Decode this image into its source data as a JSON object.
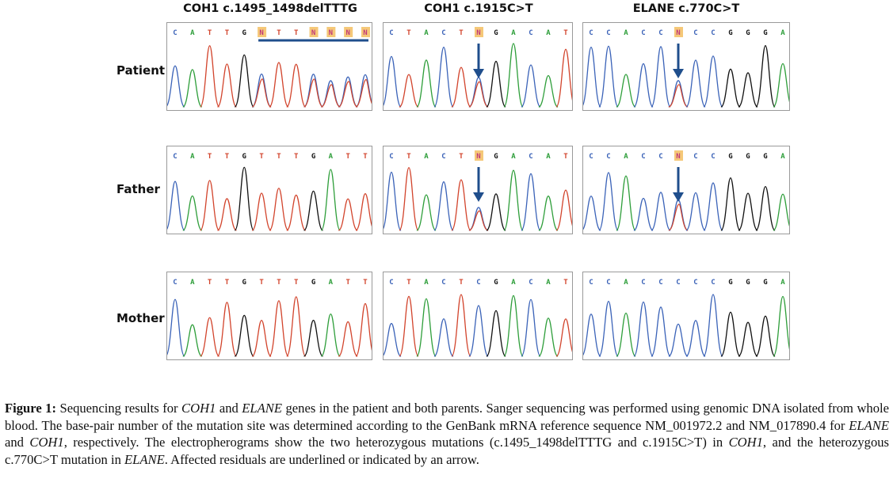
{
  "columns": [
    {
      "title": "COH1 c.1495_1498delTTTG"
    },
    {
      "title": "COH1 c.1915C>T"
    },
    {
      "title": "ELANE c.770C>T"
    }
  ],
  "rows": [
    {
      "label": "Patient"
    },
    {
      "label": "Father"
    },
    {
      "label": "Mother"
    }
  ],
  "panels": [
    [
      {
        "bases": [
          "C",
          "A",
          "T",
          "T",
          "G",
          "N",
          "T",
          "T",
          "N",
          "N",
          "N",
          "N"
        ],
        "highlight": [
          5,
          8,
          9,
          10,
          11
        ],
        "underline": true
      },
      {
        "bases": [
          "C",
          "T",
          "A",
          "C",
          "T",
          "N",
          "G",
          "A",
          "C",
          "A",
          "T"
        ],
        "highlight": [
          5
        ],
        "arrow": 5
      },
      {
        "bases": [
          "C",
          "C",
          "A",
          "C",
          "C",
          "N",
          "C",
          "C",
          "G",
          "G",
          "G",
          "A"
        ],
        "highlight": [
          5
        ],
        "arrow": 5
      }
    ],
    [
      {
        "bases": [
          "C",
          "A",
          "T",
          "T",
          "G",
          "T",
          "T",
          "T",
          "G",
          "A",
          "T",
          "T"
        ],
        "highlight": []
      },
      {
        "bases": [
          "C",
          "T",
          "A",
          "C",
          "T",
          "N",
          "G",
          "A",
          "C",
          "A",
          "T"
        ],
        "highlight": [
          5
        ],
        "arrow": 5
      },
      {
        "bases": [
          "C",
          "C",
          "A",
          "C",
          "C",
          "N",
          "C",
          "C",
          "G",
          "G",
          "G",
          "A"
        ],
        "highlight": [
          5
        ],
        "arrow": 5
      }
    ],
    [
      {
        "bases": [
          "C",
          "A",
          "T",
          "T",
          "G",
          "T",
          "T",
          "T",
          "G",
          "A",
          "T",
          "T"
        ],
        "highlight": []
      },
      {
        "bases": [
          "C",
          "T",
          "A",
          "C",
          "T",
          "C",
          "G",
          "A",
          "C",
          "A",
          "T"
        ],
        "highlight": []
      },
      {
        "bases": [
          "C",
          "C",
          "A",
          "C",
          "C",
          "C",
          "C",
          "C",
          "G",
          "G",
          "G",
          "A"
        ],
        "highlight": []
      }
    ]
  ],
  "base_colors": {
    "A": "#2e9e3a",
    "C": "#3b63b8",
    "G": "#111111",
    "T": "#d2442c",
    "N": "#c23b7a"
  },
  "highlight_color": "#f5c878",
  "arrow_color": "#1f4e8c",
  "caption": {
    "label": "Figure 1:",
    "p1": " Sequencing results for ",
    "g1": "COH1",
    "p2": " and ",
    "g2": "ELANE",
    "p3": " genes in the patient and both parents. Sanger sequencing was performed using genomic DNA isolated from whole blood. The base-pair number of the mutation site was determined according to the GenBank mRNA reference sequence NM_001972.2 and NM_017890.4 for ",
    "g3": "ELANE",
    "p4": " and ",
    "g4": "COH1",
    "p5": ", respectively. The electropherograms show the two heterozygous mutations (c.1495_1498delTTTG and c.1915C>T) in ",
    "g5": "COH1",
    "p6": ", and the heterozygous c.770C>T mutation in ",
    "g6": "ELANE",
    "p7": ". Affected residuals are underlined or indicated by an arrow."
  }
}
